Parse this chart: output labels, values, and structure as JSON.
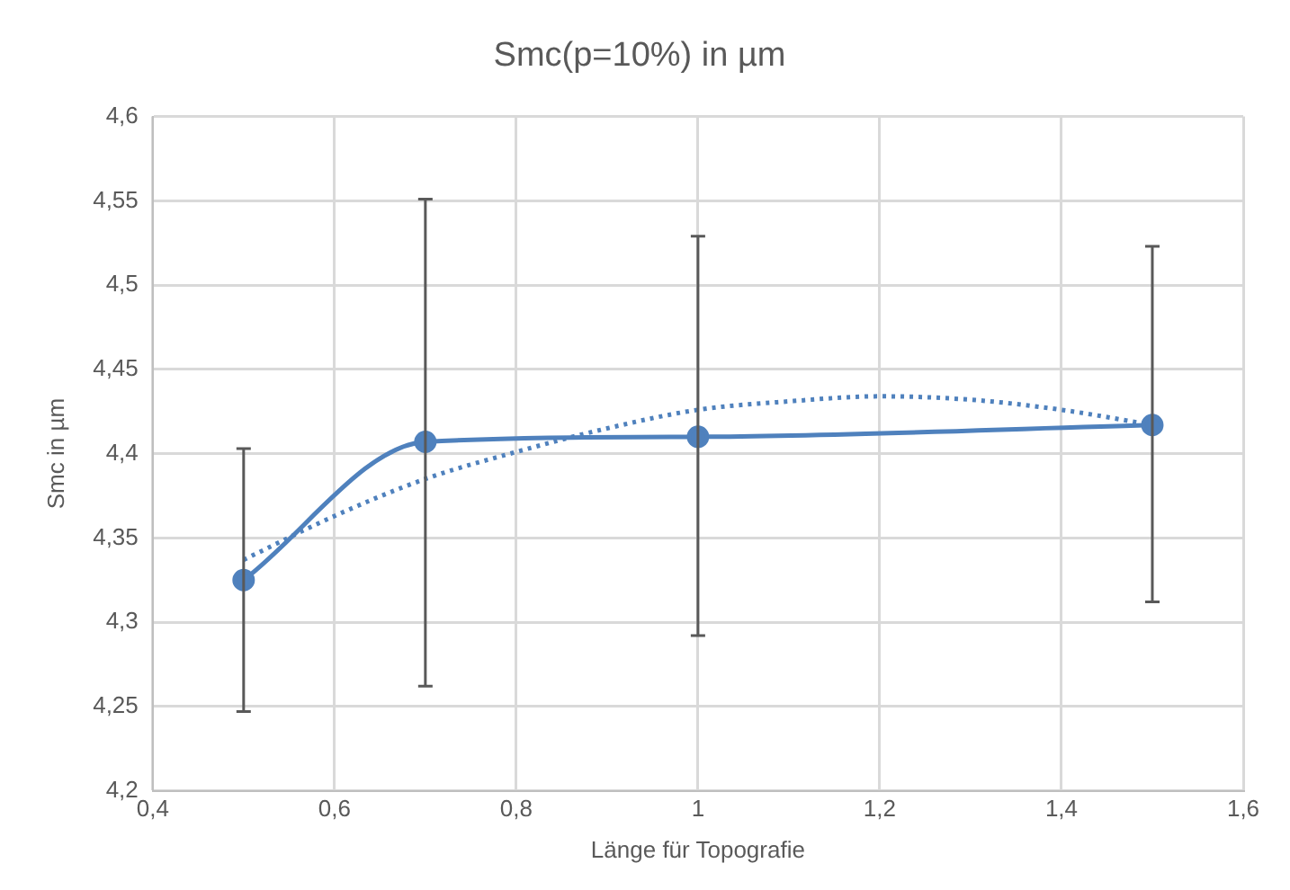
{
  "chart_data": {
    "type": "line",
    "title": "Smc(p=10%) in µm",
    "xlabel": "Länge für Topografie",
    "ylabel": "Smc in µm",
    "xlim": [
      0.4,
      1.6
    ],
    "xticks": [
      {
        "value": 0.4,
        "label": "0,4"
      },
      {
        "value": 0.6,
        "label": "0,6"
      },
      {
        "value": 0.8,
        "label": "0,8"
      },
      {
        "value": 1,
        "label": "1"
      },
      {
        "value": 1.2,
        "label": "1,2"
      },
      {
        "value": 1.4,
        "label": "1,4"
      },
      {
        "value": 1.6,
        "label": "1,6"
      }
    ],
    "ylim": [
      4.2,
      4.6
    ],
    "yticks": [
      {
        "value": 4.2,
        "label": "4,2"
      },
      {
        "value": 4.25,
        "label": "4,25"
      },
      {
        "value": 4.3,
        "label": "4,3"
      },
      {
        "value": 4.35,
        "label": "4,35"
      },
      {
        "value": 4.4,
        "label": "4,4"
      },
      {
        "value": 4.45,
        "label": "4,45"
      },
      {
        "value": 4.5,
        "label": "4,5"
      },
      {
        "value": 4.55,
        "label": "4,55"
      },
      {
        "value": 4.6,
        "label": "4,6"
      }
    ],
    "grid": true,
    "series": [
      {
        "type": "line",
        "color": "#4f81bd",
        "x": [
          0.5,
          0.7,
          1,
          1.5
        ],
        "values": [
          4.325,
          4.407,
          4.41,
          4.417
        ],
        "errors": [
          [
            4.247,
            4.403
          ],
          [
            4.262,
            4.551
          ],
          [
            4.292,
            4.529
          ],
          [
            4.312,
            4.523
          ]
        ],
        "marker": "circle",
        "line_style": "solid"
      },
      {
        "type": "line",
        "color": "#4f81bd",
        "x": [
          0.5,
          0.6,
          0.7,
          0.8,
          0.9,
          1,
          1.1,
          1.2,
          1.3,
          1.4,
          1.5
        ],
        "values": [
          4.337,
          4.363,
          4.385,
          4.401,
          4.415,
          4.426,
          4.431,
          4.434,
          4.432,
          4.426,
          4.417
        ],
        "marker": "none",
        "line_style": "dotted"
      }
    ]
  }
}
